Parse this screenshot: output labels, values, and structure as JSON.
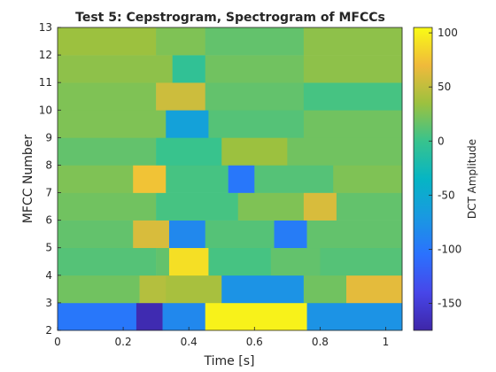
{
  "chart_data": {
    "type": "heatmap",
    "title": "Test 5: Cepstrogram, Spectrogram of MFCCs",
    "xlabel": "Time [s]",
    "ylabel": "MFCC Number",
    "colorbar_label": "DCT Amplitude",
    "xlim": [
      0,
      1.05
    ],
    "ylim": [
      2,
      13
    ],
    "x_ticks": [
      "0",
      "0.2",
      "0.4",
      "0.6",
      "0.8",
      "1"
    ],
    "y_ticks": [
      "2",
      "3",
      "4",
      "5",
      "6",
      "7",
      "8",
      "9",
      "10",
      "11",
      "12",
      "13"
    ],
    "colorbar_ticks": [
      "100",
      "50",
      "0",
      "-50",
      "-100",
      "-150"
    ],
    "clim": [
      -175,
      105
    ],
    "colormap": "parula",
    "rows": [
      {
        "mfcc": 3,
        "segments": [
          {
            "x0": 0,
            "x1": 0.24,
            "v": -100
          },
          {
            "x0": 0.24,
            "x1": 0.32,
            "v": -170
          },
          {
            "x0": 0.32,
            "x1": 0.45,
            "v": -85
          },
          {
            "x0": 0.45,
            "x1": 0.76,
            "v": 100
          },
          {
            "x0": 0.76,
            "x1": 1.05,
            "v": -75
          }
        ]
      },
      {
        "mfcc": 4,
        "segments": [
          {
            "x0": 0,
            "x1": 0.25,
            "v": 20
          },
          {
            "x0": 0.25,
            "x1": 0.33,
            "v": 45
          },
          {
            "x0": 0.33,
            "x1": 0.5,
            "v": 40
          },
          {
            "x0": 0.5,
            "x1": 0.75,
            "v": -75
          },
          {
            "x0": 0.75,
            "x1": 0.88,
            "v": 20
          },
          {
            "x0": 0.88,
            "x1": 1.05,
            "v": 65
          }
        ]
      },
      {
        "mfcc": 5,
        "segments": [
          {
            "x0": 0,
            "x1": 0.3,
            "v": 10
          },
          {
            "x0": 0.3,
            "x1": 0.34,
            "v": 15
          },
          {
            "x0": 0.34,
            "x1": 0.46,
            "v": 90
          },
          {
            "x0": 0.46,
            "x1": 0.65,
            "v": 5
          },
          {
            "x0": 0.65,
            "x1": 0.8,
            "v": 15
          },
          {
            "x0": 0.8,
            "x1": 1.05,
            "v": 10
          }
        ]
      },
      {
        "mfcc": 6,
        "segments": [
          {
            "x0": 0,
            "x1": 0.23,
            "v": 15
          },
          {
            "x0": 0.23,
            "x1": 0.34,
            "v": 60
          },
          {
            "x0": 0.34,
            "x1": 0.45,
            "v": -85
          },
          {
            "x0": 0.45,
            "x1": 0.66,
            "v": 10
          },
          {
            "x0": 0.66,
            "x1": 0.76,
            "v": -95
          },
          {
            "x0": 0.76,
            "x1": 1.05,
            "v": 15
          }
        ]
      },
      {
        "mfcc": 7,
        "segments": [
          {
            "x0": 0,
            "x1": 0.3,
            "v": 20
          },
          {
            "x0": 0.3,
            "x1": 0.55,
            "v": 5
          },
          {
            "x0": 0.55,
            "x1": 0.75,
            "v": 25
          },
          {
            "x0": 0.75,
            "x1": 0.85,
            "v": 60
          },
          {
            "x0": 0.85,
            "x1": 1.05,
            "v": 15
          }
        ]
      },
      {
        "mfcc": 8,
        "segments": [
          {
            "x0": 0,
            "x1": 0.23,
            "v": 25
          },
          {
            "x0": 0.23,
            "x1": 0.33,
            "v": 75
          },
          {
            "x0": 0.33,
            "x1": 0.52,
            "v": 5
          },
          {
            "x0": 0.52,
            "x1": 0.6,
            "v": -100
          },
          {
            "x0": 0.6,
            "x1": 0.84,
            "v": 10
          },
          {
            "x0": 0.84,
            "x1": 1.05,
            "v": 25
          }
        ]
      },
      {
        "mfcc": 9,
        "segments": [
          {
            "x0": 0,
            "x1": 0.3,
            "v": 15
          },
          {
            "x0": 0.3,
            "x1": 0.5,
            "v": 0
          },
          {
            "x0": 0.5,
            "x1": 0.7,
            "v": 35
          },
          {
            "x0": 0.7,
            "x1": 1.05,
            "v": 20
          }
        ]
      },
      {
        "mfcc": 10,
        "segments": [
          {
            "x0": 0,
            "x1": 0.33,
            "v": 25
          },
          {
            "x0": 0.33,
            "x1": 0.46,
            "v": -60
          },
          {
            "x0": 0.46,
            "x1": 0.75,
            "v": 10
          },
          {
            "x0": 0.75,
            "x1": 1.05,
            "v": 20
          }
        ]
      },
      {
        "mfcc": 11,
        "segments": [
          {
            "x0": 0,
            "x1": 0.3,
            "v": 25
          },
          {
            "x0": 0.3,
            "x1": 0.45,
            "v": 55
          },
          {
            "x0": 0.45,
            "x1": 0.75,
            "v": 15
          },
          {
            "x0": 0.75,
            "x1": 1.05,
            "v": 5
          }
        ]
      },
      {
        "mfcc": 12,
        "segments": [
          {
            "x0": 0,
            "x1": 0.35,
            "v": 30
          },
          {
            "x0": 0.35,
            "x1": 0.45,
            "v": -5
          },
          {
            "x0": 0.45,
            "x1": 0.75,
            "v": 20
          },
          {
            "x0": 0.75,
            "x1": 1.05,
            "v": 30
          }
        ]
      },
      {
        "mfcc": 13,
        "segments": [
          {
            "x0": 0,
            "x1": 0.3,
            "v": 35
          },
          {
            "x0": 0.3,
            "x1": 0.45,
            "v": 25
          },
          {
            "x0": 0.45,
            "x1": 0.75,
            "v": 15
          },
          {
            "x0": 0.75,
            "x1": 1.05,
            "v": 30
          }
        ]
      }
    ],
    "colorbar": true,
    "grid": false
  }
}
